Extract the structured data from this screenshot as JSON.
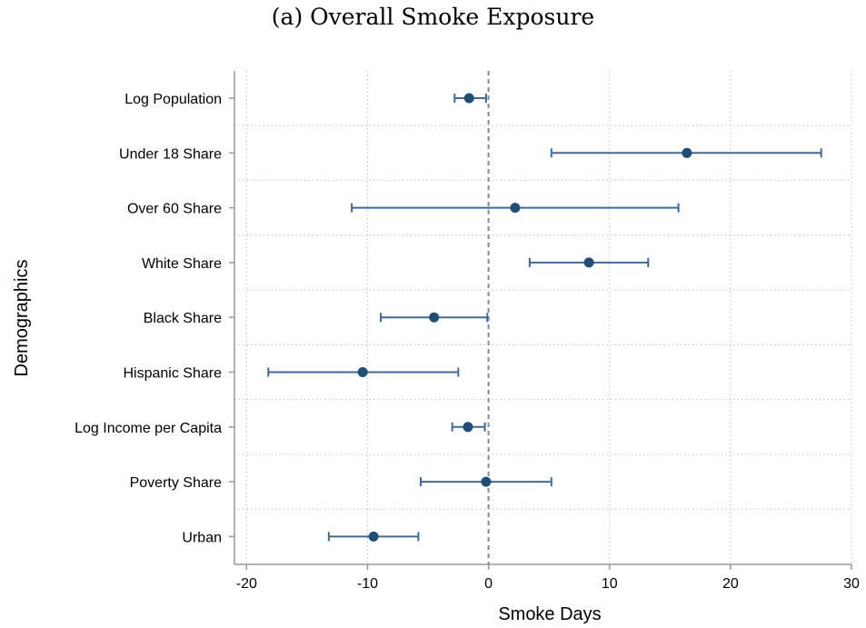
{
  "chart_data": {
    "type": "scatter",
    "subtype": "coefficient-plot-with-error-bars",
    "title": "(a) Overall Smoke Exposure",
    "xlabel": "Smoke Days",
    "ylabel": "Demographics",
    "xlim": [
      -21,
      30
    ],
    "xticks": [
      "-20",
      "-10",
      "0",
      "10",
      "20",
      "30"
    ],
    "xtick_values": [
      -20,
      -10,
      0,
      10,
      20,
      30
    ],
    "reference_line": 0,
    "grid": true,
    "colors": {
      "marker": "#1f4e79",
      "errorbar": "#3a6aa0",
      "reference": "#888888",
      "grid": "#c8c8c8",
      "axis": "#999999"
    },
    "points": [
      {
        "label": "Log Population",
        "estimate": -1.6,
        "lower": -2.8,
        "upper": -0.2
      },
      {
        "label": "Under 18 Share",
        "estimate": 16.4,
        "lower": 5.2,
        "upper": 27.5
      },
      {
        "label": "Over 60 Share",
        "estimate": 2.2,
        "lower": -11.3,
        "upper": 15.7
      },
      {
        "label": "White Share",
        "estimate": 8.3,
        "lower": 3.4,
        "upper": 13.2
      },
      {
        "label": "Black Share",
        "estimate": -4.5,
        "lower": -8.9,
        "upper": -0.1
      },
      {
        "label": "Hispanic Share",
        "estimate": -10.4,
        "lower": -18.2,
        "upper": -2.5
      },
      {
        "label": "Log Income per Capita",
        "estimate": -1.7,
        "lower": -3.0,
        "upper": -0.3
      },
      {
        "label": "Poverty Share",
        "estimate": -0.2,
        "lower": -5.6,
        "upper": 5.2
      },
      {
        "label": "Urban",
        "estimate": -9.5,
        "lower": -13.2,
        "upper": -5.8
      }
    ]
  }
}
